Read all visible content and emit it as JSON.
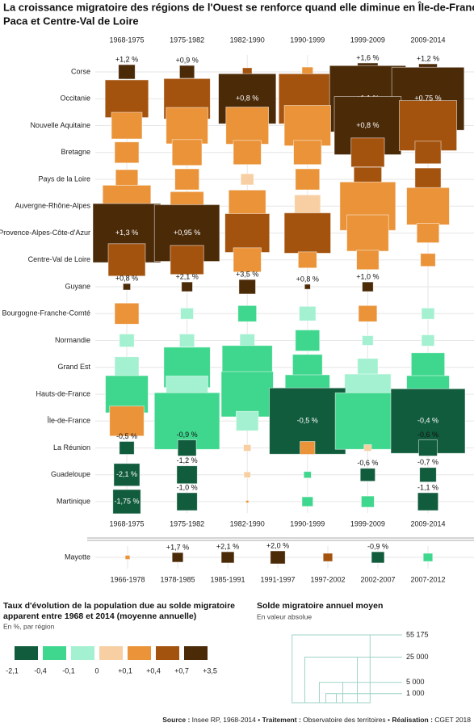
{
  "chart_data": {
    "type": "square-matrix",
    "title": [
      "La croissance migratoire des régions de l'Ouest se renforce quand elle diminue en Île-de-France,",
      "Paca et Centre-Val de Loire"
    ],
    "periods": [
      "1968-1975",
      "1975-1982",
      "1982-1990",
      "1990-1999",
      "1999-2009",
      "2009-2014"
    ],
    "series": [
      {
        "name": "Corse",
        "values": [
          2500,
          2000,
          800,
          1100,
          3800,
          3100
        ],
        "classes": [
          6,
          6,
          5,
          4,
          6,
          6
        ],
        "rate_labels": [
          "+1,2 %",
          "+0,9 %",
          null,
          null,
          "+1,6 %",
          "+1,2 %"
        ]
      },
      {
        "name": "Occitanie",
        "values": [
          17000,
          19500,
          30000,
          30000,
          52600,
          47500
        ],
        "classes": [
          5,
          5,
          6,
          5,
          6,
          6
        ],
        "rate_labels": [
          null,
          null,
          "+0,8 %",
          null,
          "+1,1 %",
          "+0,75 %"
        ]
      },
      {
        "name": "Nouvelle Aquitaine",
        "values": [
          8500,
          15800,
          16500,
          19500,
          40500,
          30000
        ],
        "classes": [
          4,
          4,
          4,
          4,
          6,
          5
        ],
        "rate_labels": [
          null,
          null,
          null,
          null,
          "+0,8 %",
          null
        ]
      },
      {
        "name": "Bretagne",
        "values": [
          5300,
          8000,
          7000,
          7000,
          10100,
          6100
        ],
        "classes": [
          4,
          4,
          4,
          4,
          5,
          5
        ],
        "rate_labels": [
          null,
          null,
          null,
          null,
          null,
          null
        ]
      },
      {
        "name": "Pays de la Loire",
        "values": [
          4500,
          5300,
          1500,
          5300,
          7000,
          6100
        ],
        "classes": [
          4,
          4,
          3,
          4,
          5,
          5
        ],
        "rate_labels": [
          null,
          null,
          null,
          null,
          null,
          null
        ]
      },
      {
        "name": "Auvergne-Rhône-Alpes",
        "values": [
          21000,
          10100,
          12500,
          6100,
          28100,
          16500
        ],
        "classes": [
          4,
          4,
          4,
          3,
          4,
          4
        ],
        "rate_labels": [
          null,
          null,
          null,
          null,
          null,
          null
        ]
      },
      {
        "name": "Provence-Alpes-Côte-d'Azur",
        "values": [
          41700,
          38500,
          18000,
          19500,
          15800,
          4500
        ],
        "classes": [
          6,
          6,
          5,
          5,
          4,
          4
        ],
        "rate_labels": [
          "+1,3 %",
          "+0,95 %",
          null,
          null,
          null,
          null
        ]
      },
      {
        "name": "Centre-Val de Loire",
        "values": [
          12500,
          10100,
          7000,
          3100,
          4500,
          2000
        ],
        "classes": [
          5,
          5,
          4,
          4,
          4,
          4
        ],
        "rate_labels": [
          null,
          null,
          null,
          null,
          null,
          null
        ]
      },
      {
        "name": "Guyane",
        "values": [
          500,
          1100,
          2500,
          300,
          1100,
          null
        ],
        "classes": [
          6,
          6,
          6,
          6,
          6,
          null
        ],
        "rate_labels": [
          "+0,8 %",
          "+2,1 %",
          "+3,5 %",
          "+0,8 %",
          "+1,0 %",
          null
        ]
      },
      {
        "name": "Bourgogne-Franche-Comté",
        "values": [
          5300,
          1500,
          3100,
          2500,
          3100,
          1500
        ],
        "classes": [
          4,
          2,
          1,
          2,
          4,
          2
        ],
        "rate_labels": [
          null,
          null,
          null,
          null,
          null,
          null
        ]
      },
      {
        "name": "Normandie",
        "values": [
          2000,
          2000,
          2000,
          5300,
          1100,
          1500
        ],
        "classes": [
          2,
          2,
          2,
          1,
          2,
          2
        ],
        "rate_labels": [
          null,
          null,
          null,
          null,
          null,
          null
        ]
      },
      {
        "name": "Grand Est",
        "values": [
          5300,
          19500,
          22800,
          8000,
          3800,
          10100
        ],
        "classes": [
          2,
          1,
          1,
          1,
          2,
          1
        ],
        "rate_labels": [
          null,
          null,
          null,
          null,
          null,
          null
        ]
      },
      {
        "name": "Hauts-de-France",
        "values": [
          16500,
          15800,
          24500,
          18000,
          19500,
          16500
        ],
        "classes": [
          1,
          2,
          1,
          1,
          2,
          1
        ],
        "rate_labels": [
          null,
          null,
          null,
          null,
          null,
          null
        ]
      },
      {
        "name": "Île-de-France",
        "values": [
          10700,
          38500,
          4500,
          52600,
          38300,
          50000
        ],
        "classes": [
          4,
          1,
          2,
          0,
          1,
          0
        ],
        "rate_labels": [
          null,
          null,
          null,
          "-0,5 %",
          null,
          "-0,4 %"
        ]
      },
      {
        "name": "La Réunion",
        "values": [
          2000,
          3100,
          500,
          2000,
          500,
          3100
        ],
        "classes": [
          0,
          0,
          3,
          4,
          3,
          0
        ],
        "rate_labels": [
          "-0,5 %",
          "-0,9 %",
          null,
          null,
          null,
          "-0,6 %"
        ]
      },
      {
        "name": "Guadeloupe",
        "values": [
          6100,
          3800,
          400,
          500,
          2000,
          2500
        ],
        "classes": [
          0,
          0,
          3,
          1,
          0,
          0
        ],
        "rate_labels": [
          "-2,1 %",
          "-1,2 %",
          null,
          null,
          "-0,6 %",
          "-0,7 %"
        ]
      },
      {
        "name": "Martinique",
        "values": [
          7000,
          3800,
          70,
          1100,
          1500,
          3800
        ],
        "classes": [
          0,
          0,
          4,
          1,
          1,
          0
        ],
        "rate_labels": [
          "-1,75 %",
          "-1,0 %",
          null,
          null,
          null,
          "-1,1 %"
        ]
      }
    ],
    "mayotte": {
      "name": "Mayotte",
      "periods": [
        "1966-1978",
        "1978-1985",
        "1985-1991",
        "1991-1997",
        "1997-2002",
        "2002-2007",
        "2007-2012"
      ],
      "values": [
        200,
        1100,
        1500,
        2000,
        800,
        1500,
        800
      ],
      "classes": [
        4,
        6,
        6,
        6,
        5,
        0,
        1
      ],
      "rate_labels": [
        null,
        "+1,7 %",
        "+2,1 %",
        "+2,0 %",
        null,
        "-0,9 %",
        null
      ]
    },
    "color_legend": {
      "title": [
        "Taux d'évolution de la population due au solde migratoire",
        "apparent entre 1968 et 2014 (moyenne annuelle)"
      ],
      "subtitle": "En %, par région",
      "colors": [
        "#115c3d",
        "#3fd78e",
        "#a4f1d1",
        "#f7cfa2",
        "#ea9339",
        "#a4530f",
        "#4b2a08"
      ],
      "bounds": [
        "-2,1",
        "-0,4",
        "-0,1",
        "0",
        "+0,1",
        "+0,4",
        "+0,7",
        "+3,5"
      ]
    },
    "size_legend": {
      "title": "Solde migratoire annuel moyen",
      "subtitle": "En valeur absolue",
      "ticks": [
        {
          "value": 55175,
          "label": "55 175"
        },
        {
          "value": 25000,
          "label": "25 000"
        },
        {
          "value": 5000,
          "label": "5 000"
        },
        {
          "value": 1000,
          "label": "1 000"
        }
      ]
    },
    "source": [
      {
        "bold": "Source :",
        "text": " Insee RP, 1968-2014 • "
      },
      {
        "bold": "Traitement :",
        "text": " Observatoire des territoires • "
      },
      {
        "bold": "Réalisation :",
        "text": " CGET 2018"
      }
    ]
  }
}
